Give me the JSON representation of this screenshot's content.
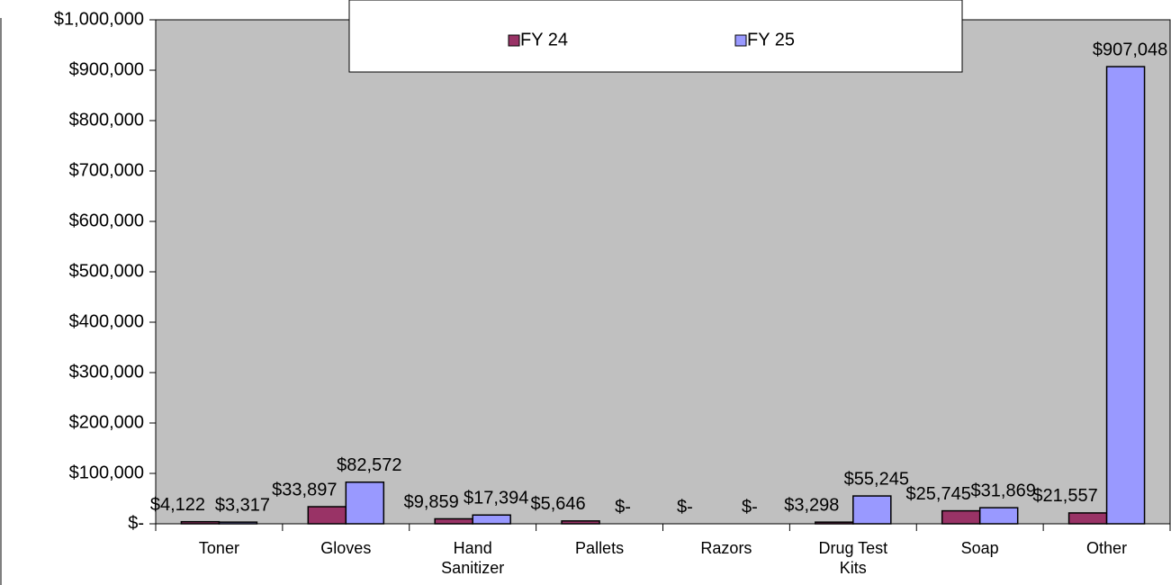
{
  "chart_data": {
    "type": "bar",
    "categories": [
      "Toner",
      "Gloves",
      "Hand Sanitizer",
      "Pallets",
      "Razors",
      "Drug Test Kits",
      "Soap",
      "Other"
    ],
    "series": [
      {
        "name": "FY 24",
        "color": "#993366",
        "values": [
          4122,
          33897,
          9859,
          5646,
          0,
          3298,
          25745,
          21557
        ],
        "value_labels": [
          "$4,122",
          "$33,897",
          "$9,859",
          "$5,646",
          "$-",
          "$3,298",
          "$25,745",
          "$21,557"
        ]
      },
      {
        "name": "FY 25",
        "color": "#9999ff",
        "values": [
          3317,
          82572,
          17394,
          0,
          0,
          55245,
          31869,
          907048
        ],
        "value_labels": [
          "$3,317",
          "$82,572",
          "$17,394",
          "$-",
          "$-",
          "$55,245",
          "$31,869",
          "$907,048"
        ]
      }
    ],
    "ylim": [
      0,
      1000000
    ],
    "yticks": [
      {
        "value": 0,
        "label": "$-"
      },
      {
        "value": 100000,
        "label": "$100,000"
      },
      {
        "value": 200000,
        "label": "$200,000"
      },
      {
        "value": 300000,
        "label": "$300,000"
      },
      {
        "value": 400000,
        "label": "$400,000"
      },
      {
        "value": 500000,
        "label": "$500,000"
      },
      {
        "value": 600000,
        "label": "$600,000"
      },
      {
        "value": 700000,
        "label": "$700,000"
      },
      {
        "value": 800000,
        "label": "$800,000"
      },
      {
        "value": 900000,
        "label": "$900,000"
      },
      {
        "value": 1000000,
        "label": "$1,000,000"
      }
    ],
    "plot_background": "#c0c0c0",
    "legend": "top"
  }
}
